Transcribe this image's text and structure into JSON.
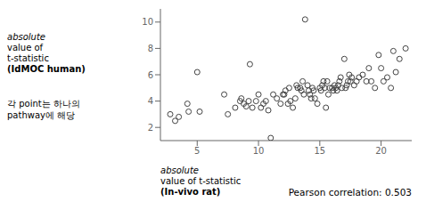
{
  "chart_data": {
    "type": "scatter",
    "x_label": "absolute\nvalue of t-statistic\n(In-vivo rat)",
    "y_label": "absolute\nvalue of\nt-statistic\n(IdMOC human)",
    "annotations": [
      "각 point는 하나의\npathway에 해당",
      "Pearson correlation: 0.503"
    ],
    "x": [
      2.8,
      3.2,
      3.5,
      4.2,
      4.3,
      5.0,
      5.2,
      7.2,
      7.5,
      8.1,
      8.5,
      8.6,
      8.8,
      9.0,
      9.2,
      9.3,
      9.5,
      9.8,
      10.0,
      10.2,
      10.4,
      10.6,
      10.8,
      11.0,
      11.2,
      11.5,
      11.8,
      12.0,
      12.1,
      12.2,
      12.4,
      12.5,
      12.6,
      12.8,
      13.0,
      13.1,
      13.2,
      13.4,
      13.5,
      13.6,
      13.7,
      13.8,
      14.0,
      14.1,
      14.2,
      14.3,
      14.4,
      14.5,
      14.6,
      14.8,
      15.0,
      15.1,
      15.2,
      15.3,
      15.4,
      15.5,
      15.6,
      15.7,
      15.8,
      16.0,
      16.1,
      16.2,
      16.3,
      16.4,
      16.5,
      16.6,
      16.7,
      16.8,
      17.0,
      17.1,
      17.2,
      17.3,
      17.4,
      17.5,
      17.6,
      17.8,
      18.0,
      18.2,
      18.5,
      18.8,
      19.0,
      19.2,
      19.5,
      19.8,
      20.0,
      20.2,
      20.5,
      20.8,
      21.0,
      21.2,
      21.5,
      22.0
    ],
    "values": [
      3.0,
      2.5,
      2.8,
      3.8,
      3.2,
      6.2,
      3.2,
      4.5,
      3.0,
      3.5,
      4.0,
      4.2,
      3.8,
      3.6,
      4.0,
      6.8,
      3.5,
      4.0,
      4.5,
      3.5,
      3.8,
      4.0,
      3.3,
      1.2,
      4.5,
      4.2,
      3.8,
      4.5,
      4.5,
      4.8,
      3.8,
      5.0,
      4.0,
      3.5,
      4.2,
      5.2,
      5.0,
      5.0,
      4.8,
      5.5,
      4.5,
      10.2,
      5.2,
      4.8,
      4.5,
      4.2,
      5.0,
      4.8,
      4.2,
      3.8,
      5.0,
      4.8,
      5.2,
      5.5,
      5.0,
      3.5,
      5.5,
      4.5,
      5.0,
      5.0,
      4.8,
      5.2,
      5.0,
      4.8,
      5.2,
      5.5,
      5.8,
      5.0,
      7.2,
      5.0,
      5.2,
      5.5,
      6.0,
      5.5,
      5.8,
      5.2,
      5.5,
      5.8,
      6.0,
      5.5,
      6.5,
      5.5,
      5.0,
      7.5,
      6.5,
      5.5,
      5.8,
      5.0,
      7.8,
      6.2,
      7.2,
      8.0
    ],
    "xlim": [
      2,
      22.5
    ],
    "ylim": [
      1,
      11
    ],
    "xticks": [
      5,
      10,
      15,
      20
    ],
    "yticks": [
      2,
      4,
      6,
      8,
      10
    ],
    "color": "#444444",
    "marker": "circle",
    "grid": false
  }
}
